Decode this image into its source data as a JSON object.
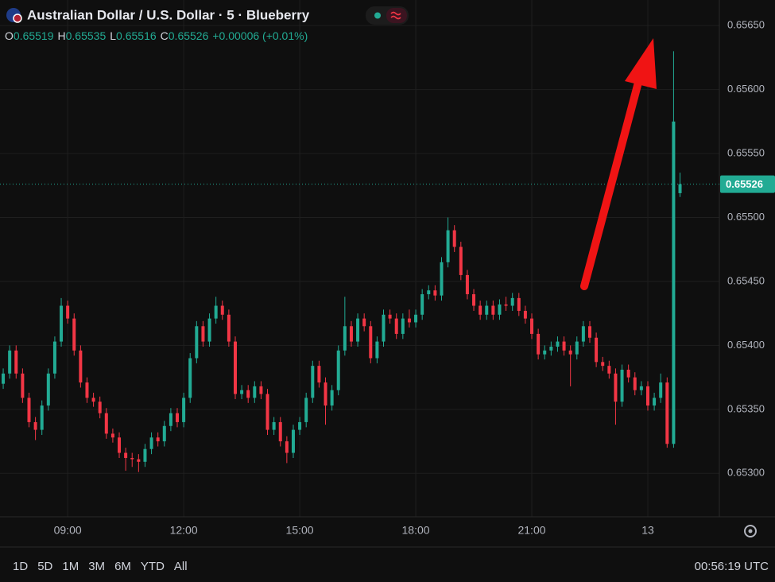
{
  "header": {
    "symbol": "Australian Dollar / U.S. Dollar · 5 · Blueberry",
    "open_label": "O",
    "high_label": "H",
    "low_label": "L",
    "close_label": "C",
    "open": 0.65519,
    "high": 0.65535,
    "low": 0.65516,
    "close": 0.65526,
    "change": "+0.00006 (+0.01%)"
  },
  "chart_data": {
    "type": "candlestick",
    "up_color": "#22ab94",
    "down_color": "#f23645",
    "xlim": [
      -0.5,
      111.1
    ],
    "xticks": [
      {
        "value": 10,
        "label": "09:00"
      },
      {
        "value": 28,
        "label": "12:00"
      },
      {
        "value": 46,
        "label": "15:00"
      },
      {
        "value": 64,
        "label": "18:00"
      },
      {
        "value": 82,
        "label": "21:00"
      },
      {
        "value": 100,
        "label": "13"
      }
    ],
    "ylim": [
      0.65266,
      0.6567
    ],
    "yticks": [
      {
        "value": 0.653,
        "label": "0.65300"
      },
      {
        "value": 0.6535,
        "label": "0.65350"
      },
      {
        "value": 0.654,
        "label": "0.65400"
      },
      {
        "value": 0.6545,
        "label": "0.65450"
      },
      {
        "value": 0.655,
        "label": "0.65500"
      },
      {
        "value": 0.6555,
        "label": "0.65550"
      },
      {
        "value": 0.656,
        "label": "0.65600"
      },
      {
        "value": 0.6565,
        "label": "0.65650"
      }
    ],
    "grid": true,
    "last_price": 0.65526,
    "open": [
      0.6537,
      0.65378,
      0.65396,
      0.65378,
      0.65359,
      0.6534,
      0.65334,
      0.65353,
      0.65378,
      0.65403,
      0.65431,
      0.65421,
      0.65396,
      0.65371,
      0.65359,
      0.65356,
      0.65347,
      0.65331,
      0.65328,
      0.65316,
      0.65312,
      0.65311,
      0.65309,
      0.65319,
      0.65328,
      0.65325,
      0.65337,
      0.65347,
      0.6534,
      0.65359,
      0.6539,
      0.65415,
      0.65403,
      0.65421,
      0.65431,
      0.65424,
      0.65403,
      0.65362,
      0.65365,
      0.65359,
      0.65368,
      0.65362,
      0.65334,
      0.6534,
      0.65325,
      0.65316,
      0.65334,
      0.6534,
      0.65359,
      0.65384,
      0.65371,
      0.65353,
      0.65365,
      0.65396,
      0.65415,
      0.65403,
      0.65421,
      0.65415,
      0.6539,
      0.65403,
      0.65424,
      0.65421,
      0.65409,
      0.65421,
      0.65418,
      0.65424,
      0.6544,
      0.65443,
      0.65439,
      0.65465,
      0.6549,
      0.65477,
      0.65455,
      0.6544,
      0.65431,
      0.65424,
      0.65431,
      0.65424,
      0.65432,
      0.65431,
      0.65437,
      0.65427,
      0.65421,
      0.65409,
      0.65393,
      0.65396,
      0.65399,
      0.65403,
      0.65396,
      0.65393,
      0.65403,
      0.65415,
      0.65406,
      0.65387,
      0.65384,
      0.65378,
      0.65356,
      0.65381,
      0.65375,
      0.65365,
      0.65368,
      0.65353,
      0.65359,
      0.65371,
      0.65323,
      0.65519
    ],
    "high": [
      0.65382,
      0.654,
      0.654,
      0.65382,
      0.65363,
      0.65344,
      0.65357,
      0.65382,
      0.65407,
      0.65437,
      0.65435,
      0.65425,
      0.654,
      0.65375,
      0.65363,
      0.6536,
      0.65351,
      0.65335,
      0.65332,
      0.6532,
      0.65316,
      0.65315,
      0.65323,
      0.65332,
      0.65332,
      0.65341,
      0.65351,
      0.65351,
      0.65363,
      0.65394,
      0.65419,
      0.65419,
      0.65425,
      0.65438,
      0.65435,
      0.65428,
      0.65407,
      0.65369,
      0.65369,
      0.65372,
      0.65372,
      0.65366,
      0.65344,
      0.65344,
      0.65329,
      0.65338,
      0.65344,
      0.65363,
      0.65388,
      0.65388,
      0.65375,
      0.65369,
      0.654,
      0.65438,
      0.65419,
      0.65425,
      0.65425,
      0.65419,
      0.65407,
      0.65428,
      0.65428,
      0.65425,
      0.65425,
      0.65428,
      0.65428,
      0.65444,
      0.65447,
      0.65447,
      0.65469,
      0.655,
      0.65494,
      0.65481,
      0.65459,
      0.65444,
      0.65435,
      0.65435,
      0.65435,
      0.65436,
      0.65438,
      0.65441,
      0.65441,
      0.65431,
      0.65425,
      0.65413,
      0.654,
      0.65403,
      0.65407,
      0.65407,
      0.654,
      0.65407,
      0.65419,
      0.65419,
      0.6541,
      0.65391,
      0.65388,
      0.65382,
      0.65385,
      0.65385,
      0.65379,
      0.65372,
      0.65372,
      0.65363,
      0.65378,
      0.65375,
      0.6563,
      0.65535
    ],
    "low": [
      0.65366,
      0.65374,
      0.65374,
      0.65355,
      0.65336,
      0.65326,
      0.6533,
      0.65349,
      0.65374,
      0.65399,
      0.65417,
      0.65392,
      0.65367,
      0.65355,
      0.65352,
      0.65343,
      0.65327,
      0.65324,
      0.65312,
      0.65302,
      0.65305,
      0.65301,
      0.65305,
      0.65315,
      0.65321,
      0.65321,
      0.65333,
      0.65336,
      0.65336,
      0.65355,
      0.65386,
      0.65399,
      0.65399,
      0.65417,
      0.6542,
      0.65399,
      0.65358,
      0.65358,
      0.65355,
      0.65355,
      0.65358,
      0.6533,
      0.6533,
      0.65321,
      0.65308,
      0.65312,
      0.6533,
      0.65336,
      0.65355,
      0.65367,
      0.65338,
      0.65349,
      0.65361,
      0.65392,
      0.65399,
      0.65399,
      0.65411,
      0.65386,
      0.65386,
      0.65399,
      0.65417,
      0.65405,
      0.65405,
      0.65414,
      0.65414,
      0.6542,
      0.65436,
      0.65435,
      0.65435,
      0.65461,
      0.65473,
      0.65451,
      0.65436,
      0.65427,
      0.6542,
      0.6542,
      0.6542,
      0.6542,
      0.65427,
      0.65427,
      0.65423,
      0.65417,
      0.65405,
      0.65389,
      0.65389,
      0.65392,
      0.65395,
      0.65392,
      0.65368,
      0.65389,
      0.65399,
      0.65402,
      0.65383,
      0.6538,
      0.65374,
      0.65338,
      0.65352,
      0.65371,
      0.65361,
      0.65361,
      0.65349,
      0.65349,
      0.65355,
      0.6532,
      0.6532,
      0.65516
    ],
    "close": [
      0.65378,
      0.65396,
      0.65378,
      0.65359,
      0.6534,
      0.65334,
      0.65353,
      0.65378,
      0.65403,
      0.65431,
      0.65421,
      0.65396,
      0.65371,
      0.65359,
      0.65356,
      0.65347,
      0.65331,
      0.65328,
      0.65316,
      0.65312,
      0.65311,
      0.65309,
      0.65319,
      0.65328,
      0.65325,
      0.65337,
      0.65347,
      0.6534,
      0.65359,
      0.6539,
      0.65415,
      0.65403,
      0.65421,
      0.65431,
      0.65424,
      0.65403,
      0.65362,
      0.65365,
      0.65359,
      0.65368,
      0.65362,
      0.65334,
      0.6534,
      0.65325,
      0.65316,
      0.65334,
      0.6534,
      0.65359,
      0.65384,
      0.65371,
      0.65353,
      0.65365,
      0.65396,
      0.65415,
      0.65403,
      0.65421,
      0.65415,
      0.6539,
      0.65403,
      0.65424,
      0.65421,
      0.65409,
      0.65421,
      0.65418,
      0.65424,
      0.6544,
      0.65443,
      0.65439,
      0.65465,
      0.6549,
      0.65477,
      0.65455,
      0.6544,
      0.65431,
      0.65424,
      0.65431,
      0.65424,
      0.65432,
      0.65431,
      0.65437,
      0.65427,
      0.65421,
      0.65409,
      0.65393,
      0.65396,
      0.65399,
      0.65403,
      0.65396,
      0.65393,
      0.65403,
      0.65415,
      0.65406,
      0.65387,
      0.65384,
      0.65378,
      0.65356,
      0.65381,
      0.65375,
      0.65365,
      0.65368,
      0.65353,
      0.65359,
      0.65371,
      0.65323,
      0.65575,
      0.65526
    ]
  },
  "toolbar": {
    "ranges": [
      "1D",
      "5D",
      "1M",
      "3M",
      "6M",
      "YTD",
      "All"
    ],
    "clock": "00:56:19 UTC"
  }
}
